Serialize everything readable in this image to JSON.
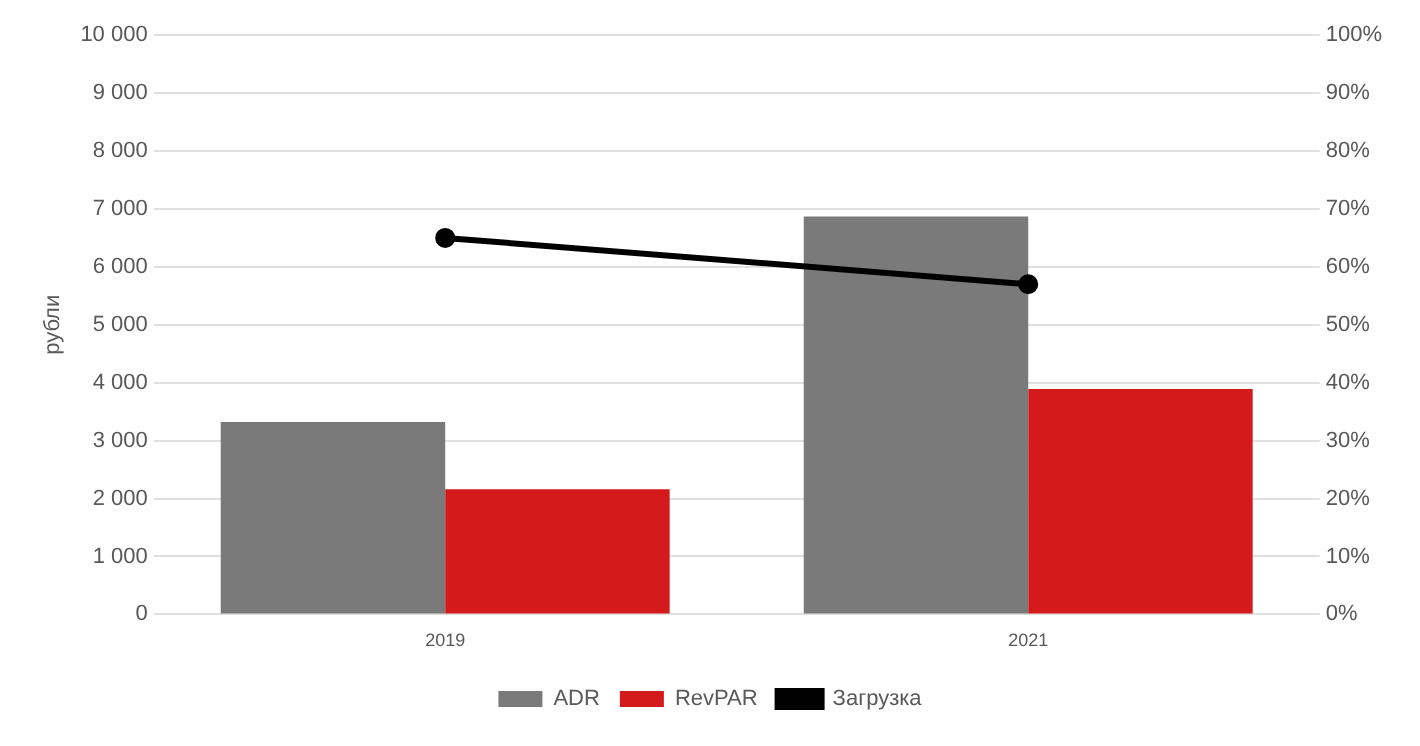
{
  "chart_data": {
    "type": "bar",
    "ylabel": "рубли",
    "categories": [
      "2019",
      "2021"
    ],
    "series": [
      {
        "name": "ADR",
        "color": "#7a7a7a",
        "values": [
          3320,
          6870
        ]
      },
      {
        "name": "RevPAR",
        "color": "#d41a1a",
        "values": [
          2160,
          3890
        ]
      },
      {
        "name": "Загрузка",
        "type": "line",
        "axis": "y2",
        "color": "#000000",
        "values": [
          65,
          57
        ]
      }
    ],
    "ylim": [
      0,
      10000
    ],
    "yticks": [
      0,
      {
        "value": 1000,
        "label": "1 000"
      },
      {
        "value": 2000,
        "label": "2 000"
      },
      {
        "value": 3000,
        "label": "3 000"
      },
      {
        "value": 4000,
        "label": "4 000"
      },
      {
        "value": 5000,
        "label": "5 000"
      },
      {
        "value": 6000,
        "label": "6 000"
      },
      {
        "value": 7000,
        "label": "7 000"
      },
      {
        "value": 8000,
        "label": "8 000"
      },
      {
        "value": 9000,
        "label": "9 000"
      },
      {
        "value": 10000,
        "label": "10 000"
      }
    ],
    "y2lim": [
      0,
      100
    ],
    "y2ticks": [
      {
        "value": 0,
        "label": "0%"
      },
      {
        "value": 10,
        "label": "10%"
      },
      {
        "value": 20,
        "label": "20%"
      },
      {
        "value": 30,
        "label": "30%"
      },
      {
        "value": 40,
        "label": "40%"
      },
      {
        "value": 50,
        "label": "50%"
      },
      {
        "value": 60,
        "label": "60%"
      },
      {
        "value": 70,
        "label": "70%"
      },
      {
        "value": 80,
        "label": "80%"
      },
      {
        "value": 90,
        "label": "90%"
      },
      {
        "value": 100,
        "label": "100%"
      }
    ],
    "grid": "y",
    "legend": "bottom",
    "marker": "circle",
    "line_style": "solid"
  }
}
